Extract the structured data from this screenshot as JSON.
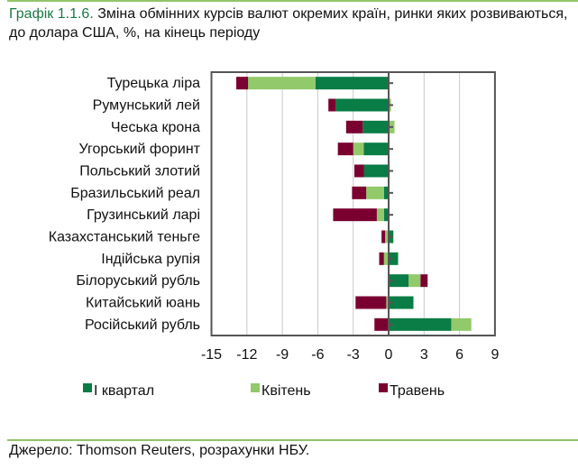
{
  "title": {
    "number": "Графік 1.1.6.",
    "text": " Зміна обмінних курсів валют окремих країн, ринки яких розвиваються, до долара США, %, на кінець періоду"
  },
  "source": "Джерело: Thomson Reuters, розрахунки НБУ.",
  "chart_data": {
    "type": "bar",
    "orientation": "horizontal",
    "stacked": true,
    "categories": [
      "Турецька ліра",
      "Румунський лей",
      "Чеська крона",
      "Угорський форинт",
      "Польський злотий",
      "Бразильський реал",
      "Грузинський ларі",
      "Казахстанський теньге",
      "Індійська рупія",
      "Білоруський рубль",
      "Китайський юань",
      "Російський рубль"
    ],
    "series": [
      {
        "name": "І квартал",
        "color": "#0a7c45",
        "values": [
          -6.2,
          -4.5,
          -2.2,
          -2.1,
          -2.1,
          -0.4,
          -0.4,
          0.4,
          0.8,
          1.7,
          2.1,
          5.3
        ]
      },
      {
        "name": "Квітень",
        "color": "#92c96a",
        "values": [
          -5.7,
          0.2,
          0.5,
          -0.9,
          0.1,
          -1.5,
          -0.6,
          -0.3,
          -0.4,
          1.0,
          -0.2,
          1.7
        ]
      },
      {
        "name": "Травень",
        "color": "#7a0030",
        "values": [
          -1.0,
          -0.6,
          -1.4,
          -1.3,
          -0.8,
          -1.2,
          -3.7,
          -0.3,
          -0.4,
          0.6,
          -2.6,
          -1.2
        ]
      }
    ],
    "xlim": [
      -15,
      9
    ],
    "xticks": [
      -15,
      -12,
      -9,
      -6,
      -3,
      0,
      3,
      6,
      9
    ],
    "grid": true,
    "legend": "bottom"
  }
}
